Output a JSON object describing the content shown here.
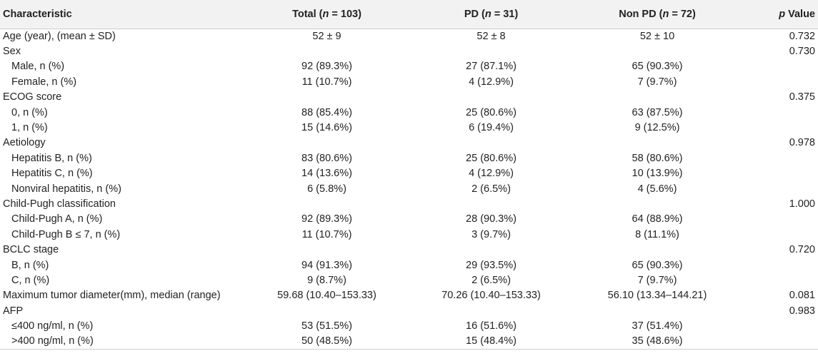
{
  "header": {
    "characteristic": "Characteristic",
    "total": "Total (n = 103)",
    "pd": "PD (n = 31)",
    "nonpd": "Non PD (n = 72)",
    "p_italic": "p",
    "p_rest": " Value"
  },
  "rows": [
    {
      "label": "Age (year), (mean ± SD)",
      "sub": false,
      "total": "52 ± 9",
      "pd": "52 ± 8",
      "nonpd": "52 ± 10",
      "p": "0.732"
    },
    {
      "label": "Sex",
      "sub": false,
      "total": "",
      "pd": "",
      "nonpd": "",
      "p": "0.730"
    },
    {
      "label": "Male, n (%)",
      "sub": true,
      "total": "92 (89.3%)",
      "pd": "27 (87.1%)",
      "nonpd": "65 (90.3%)",
      "p": ""
    },
    {
      "label": "Female, n (%)",
      "sub": true,
      "total": "11 (10.7%)",
      "pd": "4 (12.9%)",
      "nonpd": "7 (9.7%)",
      "p": ""
    },
    {
      "label": "ECOG score",
      "sub": false,
      "total": "",
      "pd": "",
      "nonpd": "",
      "p": "0.375"
    },
    {
      "label": "0, n (%)",
      "sub": true,
      "total": "88 (85.4%)",
      "pd": "25 (80.6%)",
      "nonpd": "63 (87.5%)",
      "p": ""
    },
    {
      "label": "1, n (%)",
      "sub": true,
      "total": "15 (14.6%)",
      "pd": "6 (19.4%)",
      "nonpd": "9 (12.5%)",
      "p": ""
    },
    {
      "label": "Aetiology",
      "sub": false,
      "total": "",
      "pd": "",
      "nonpd": "",
      "p": "0.978"
    },
    {
      "label": "Hepatitis B, n (%)",
      "sub": true,
      "total": "83 (80.6%)",
      "pd": "25 (80.6%)",
      "nonpd": "58 (80.6%)",
      "p": ""
    },
    {
      "label": "Hepatitis C, n (%)",
      "sub": true,
      "total": "14 (13.6%)",
      "pd": "4 (12.9%)",
      "nonpd": "10 (13.9%)",
      "p": ""
    },
    {
      "label": "Nonviral hepatitis, n (%)",
      "sub": true,
      "total": "6 (5.8%)",
      "pd": "2 (6.5%)",
      "nonpd": "4 (5.6%)",
      "p": ""
    },
    {
      "label": "Child-Pugh classification",
      "sub": false,
      "total": "",
      "pd": "",
      "nonpd": "",
      "p": "1.000"
    },
    {
      "label": "Child-Pugh A, n (%)",
      "sub": true,
      "total": "92 (89.3%)",
      "pd": "28 (90.3%)",
      "nonpd": "64 (88.9%)",
      "p": ""
    },
    {
      "label": "Child-Pugh B ≤ 7, n (%)",
      "sub": true,
      "total": "11 (10.7%)",
      "pd": "3 (9.7%)",
      "nonpd": "8 (11.1%)",
      "p": ""
    },
    {
      "label": "BCLC stage",
      "sub": false,
      "total": "",
      "pd": "",
      "nonpd": "",
      "p": "0.720"
    },
    {
      "label": "B, n (%)",
      "sub": true,
      "total": "94 (91.3%)",
      "pd": "29 (93.5%)",
      "nonpd": "65 (90.3%)",
      "p": ""
    },
    {
      "label": "C, n (%)",
      "sub": true,
      "total": "9 (8.7%)",
      "pd": "2 (6.5%)",
      "nonpd": "7 (9.7%)",
      "p": ""
    },
    {
      "label": "Maximum tumor diameter(mm), median (range)",
      "sub": false,
      "total": "59.68 (10.40–153.33)",
      "pd": "70.26 (10.40–153.33)",
      "nonpd": "56.10 (13.34–144.21)",
      "p": "0.081"
    },
    {
      "label": "AFP",
      "sub": false,
      "total": "",
      "pd": "",
      "nonpd": "",
      "p": "0.983"
    },
    {
      "label": "≤400 ng/ml, n (%)",
      "sub": true,
      "total": "53 (51.5%)",
      "pd": "16 (51.6%)",
      "nonpd": "37 (51.4%)",
      "p": ""
    },
    {
      "label": ">400 ng/ml, n (%)",
      "sub": true,
      "total": "50 (48.5%)",
      "pd": "15 (48.4%)",
      "nonpd": "35 (48.6%)",
      "p": ""
    }
  ]
}
